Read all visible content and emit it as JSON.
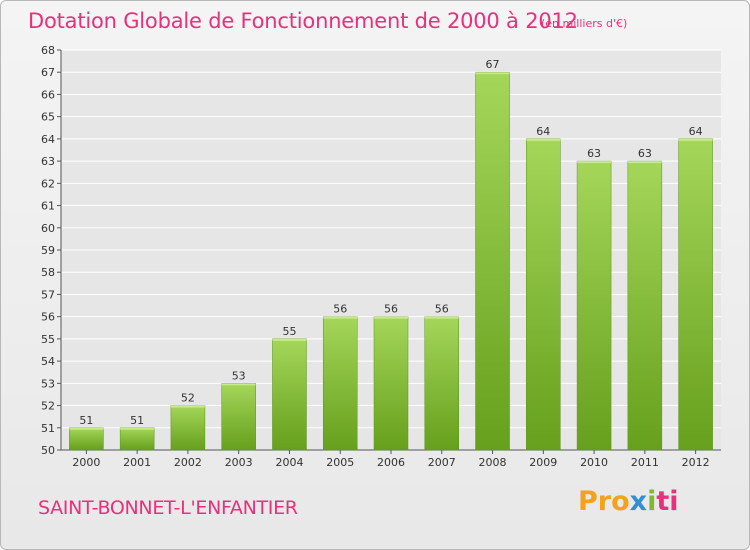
{
  "header": {
    "title": "Dotation Globale de Fonctionnement de 2000 à 2012",
    "unit": "(en milliers d'€)"
  },
  "footer": {
    "place": "SAINT-BONNET-L'ENFANTIER",
    "logo_parts": [
      "Pro",
      "x",
      "i",
      "ti"
    ]
  },
  "colors": {
    "title": "#e8307c",
    "bar_top": "#a4d65a",
    "bar_bottom": "#66a01c",
    "grid": "#ffffff",
    "axis_text": "#333333"
  },
  "chart_data": {
    "type": "bar",
    "title": "Dotation Globale de Fonctionnement de 2000 à 2012",
    "subtitle": "(en milliers d'€)",
    "categories": [
      "2000",
      "2001",
      "2002",
      "2003",
      "2004",
      "2005",
      "2006",
      "2007",
      "2008",
      "2009",
      "2010",
      "2011",
      "2012"
    ],
    "values": [
      51,
      51,
      52,
      53,
      55,
      56,
      56,
      56,
      67,
      64,
      63,
      63,
      64
    ],
    "ylim": [
      50,
      68
    ],
    "yticks": [
      50,
      51,
      52,
      53,
      54,
      55,
      56,
      57,
      58,
      59,
      60,
      61,
      62,
      63,
      64,
      65,
      66,
      67,
      68
    ],
    "grid": true,
    "data_labels": true
  }
}
